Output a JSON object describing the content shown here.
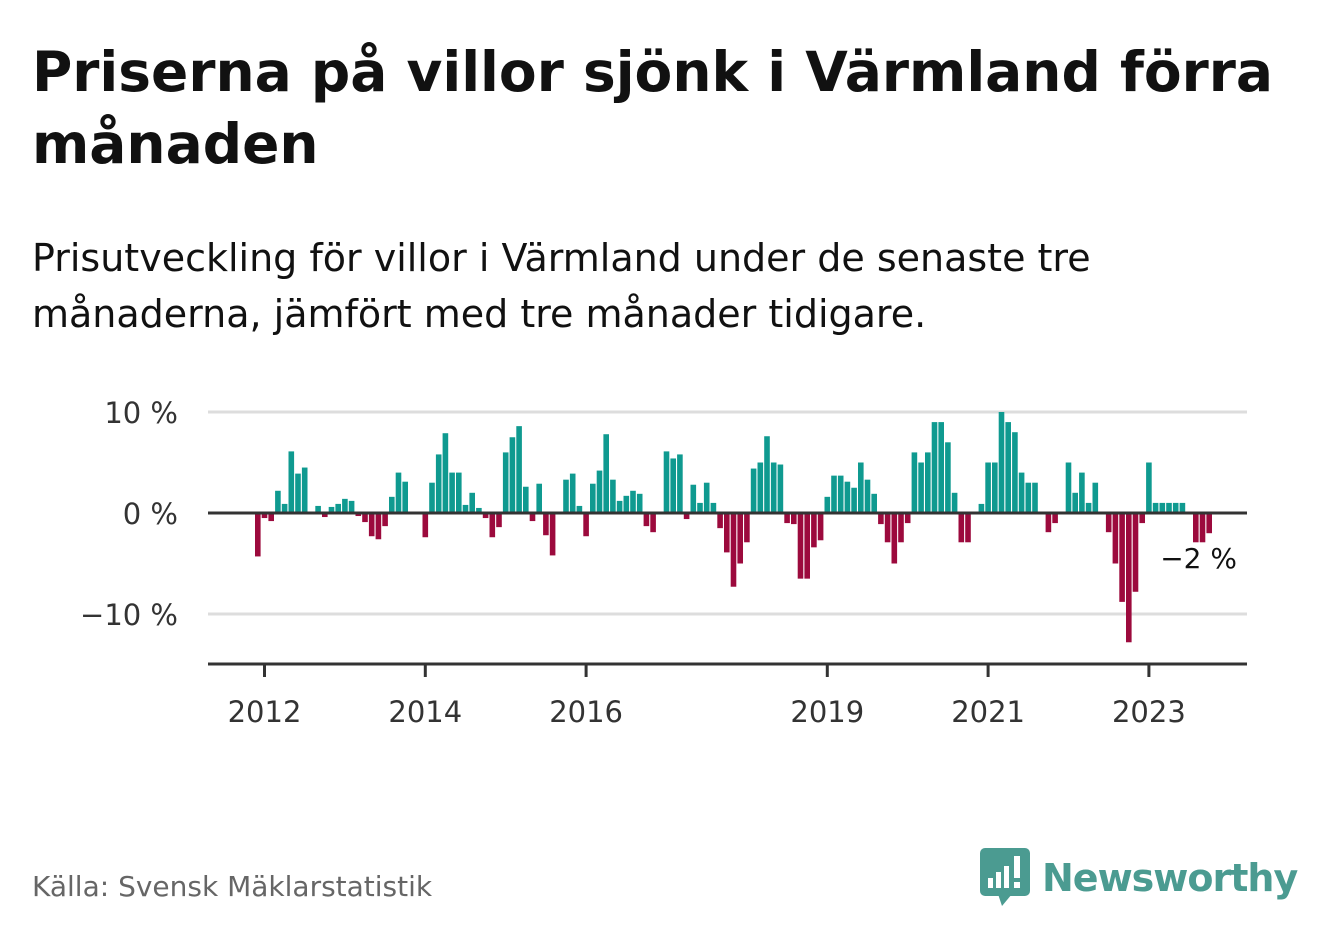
{
  "title": "Priserna på villor sjönk i Värmland förra månaden",
  "subtitle": "Prisutveckling för villor i Värmland under de senaste tre månaderna, jämfört med tre månader tidigare.",
  "source": "Källa: Svensk Mäklarstatistik",
  "brand": {
    "name": "Newsworthy",
    "color": "#4b9b91"
  },
  "colors": {
    "positive": "#0f9a90",
    "negative": "#9c0a3d",
    "grid": "#dddddd",
    "axis": "#333333"
  },
  "chart_data": {
    "type": "bar",
    "y_tick_labels": [
      "10 %",
      "0 %",
      "−10 %"
    ],
    "y_ticks": [
      10,
      0,
      -10
    ],
    "ylim": [
      -15,
      10.5
    ],
    "grid": true,
    "x_tick_labels": [
      "2012",
      "2014",
      "2016",
      "2019",
      "2021",
      "2023"
    ],
    "x_tick_positions": [
      "2012-01",
      "2014-01",
      "2016-01",
      "2019-01",
      "2021-01",
      "2023-01"
    ],
    "x_start": "2011-12",
    "annotation": "−2 %",
    "values": [
      -4.3,
      -0.5,
      -0.8,
      2.2,
      0.9,
      6.1,
      3.9,
      4.5,
      0,
      0.7,
      -0.4,
      0.6,
      0.9,
      1.4,
      1.2,
      -0.3,
      -0.9,
      -2.3,
      -2.6,
      -1.3,
      1.6,
      4.0,
      3.1,
      0,
      0,
      -2.4,
      3.0,
      5.8,
      7.9,
      4.0,
      4.0,
      0.8,
      2.0,
      0.5,
      -0.5,
      -2.4,
      -1.4,
      6.0,
      7.5,
      8.6,
      2.6,
      -0.8,
      2.9,
      -2.2,
      -4.2,
      0,
      3.3,
      3.9,
      0.7,
      -2.3,
      2.9,
      4.2,
      7.8,
      3.3,
      1.2,
      1.7,
      2.2,
      1.9,
      -1.3,
      -1.9,
      0,
      6.1,
      5.4,
      5.8,
      -0.6,
      2.8,
      1.0,
      3.0,
      1.0,
      -1.5,
      -3.9,
      -7.3,
      -5.0,
      -2.9,
      4.4,
      5.0,
      7.6,
      5.0,
      4.8,
      -1.0,
      -1.1,
      -6.5,
      -6.5,
      -3.4,
      -2.7,
      1.6,
      3.7,
      3.7,
      3.1,
      2.5,
      5.0,
      3.3,
      1.9,
      -1.1,
      -2.9,
      -5.0,
      -2.9,
      -1.0,
      6.0,
      5.0,
      6.0,
      9.0,
      9.0,
      7.0,
      2.0,
      -2.9,
      -2.9,
      0,
      0.9,
      5.0,
      5.0,
      10.0,
      9.0,
      8.0,
      4.0,
      3.0,
      3.0,
      0,
      -1.9,
      -1.0,
      0,
      5.0,
      2.0,
      4.0,
      1.0,
      3.0,
      0,
      -1.9,
      -5.0,
      -8.8,
      -12.8,
      -7.8,
      -1.0,
      5.0,
      1.0,
      1.0,
      1.0,
      1.0,
      1.0,
      0,
      -2.9,
      -2.9,
      -2.0
    ]
  }
}
